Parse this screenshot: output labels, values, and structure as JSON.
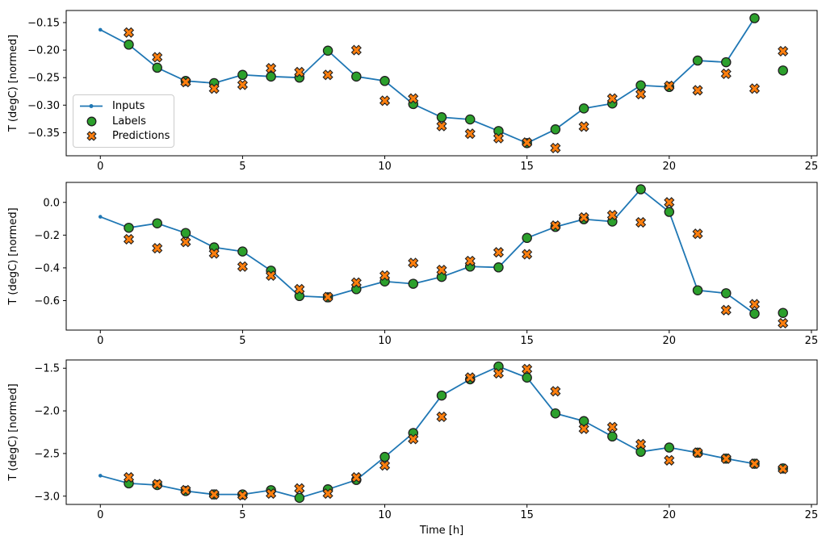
{
  "figure": {
    "background": "#ffffff",
    "xlabel": "Time [h]",
    "ylabel": "T (degC) [normed]"
  },
  "legend": {
    "items": [
      {
        "label": "Inputs",
        "marker": "line-dot-icon",
        "color": "#1f77b4"
      },
      {
        "label": "Labels",
        "marker": "circle-icon",
        "color": "#2ca02c"
      },
      {
        "label": "Predictions",
        "marker": "x-icon",
        "color": "#ff7f0e"
      }
    ]
  },
  "colors": {
    "inputs_blue": "#1f77b4",
    "labels_green": "#2ca02c",
    "predictions_orange": "#ff7f0e",
    "marker_edge": "#1f1f1f",
    "axis": "#000000",
    "legend_border": "#cccccc"
  },
  "chart_data": [
    {
      "type": "line",
      "ylabel": "T (degC) [normed]",
      "xlabel": "",
      "grid": false,
      "xlim": [
        -1.2,
        25.2
      ],
      "ylim": [
        -0.392,
        -0.128
      ],
      "xticks": [
        0,
        5,
        10,
        15,
        20,
        25
      ],
      "xtick_labels": [
        "0",
        "5",
        "10",
        "15",
        "20",
        "25"
      ],
      "yticks": [
        -0.15,
        -0.2,
        -0.25,
        -0.3,
        -0.35
      ],
      "ytick_labels": [
        "−0.15",
        "−0.20",
        "−0.25",
        "−0.30",
        "−0.35"
      ],
      "series": [
        {
          "name": "Inputs",
          "style": "line+dot",
          "x": [
            0,
            1,
            2,
            3,
            4,
            5,
            6,
            7,
            8,
            9,
            10,
            11,
            12,
            13,
            14,
            15,
            16,
            17,
            18,
            19,
            20,
            21,
            22,
            23
          ],
          "y": [
            -0.163,
            -0.19,
            -0.232,
            -0.256,
            -0.26,
            -0.245,
            -0.248,
            -0.25,
            -0.201,
            -0.248,
            -0.256,
            -0.298,
            -0.322,
            -0.326,
            -0.347,
            -0.369,
            -0.344,
            -0.306,
            -0.297,
            -0.264,
            -0.267,
            -0.219,
            -0.222,
            -0.142
          ]
        },
        {
          "name": "Labels",
          "style": "circle",
          "x": [
            1,
            2,
            3,
            4,
            5,
            6,
            7,
            8,
            9,
            10,
            11,
            12,
            13,
            14,
            15,
            16,
            17,
            18,
            19,
            20,
            21,
            22,
            23,
            24
          ],
          "y": [
            -0.19,
            -0.232,
            -0.256,
            -0.26,
            -0.245,
            -0.248,
            -0.25,
            -0.201,
            -0.248,
            -0.256,
            -0.298,
            -0.322,
            -0.326,
            -0.347,
            -0.369,
            -0.344,
            -0.306,
            -0.297,
            -0.264,
            -0.267,
            -0.219,
            -0.222,
            -0.142,
            -0.237
          ]
        },
        {
          "name": "Predictions",
          "style": "x",
          "x": [
            1,
            2,
            3,
            4,
            5,
            6,
            7,
            8,
            9,
            10,
            11,
            12,
            13,
            14,
            15,
            16,
            17,
            18,
            19,
            20,
            21,
            22,
            23,
            24
          ],
          "y": [
            -0.168,
            -0.213,
            -0.258,
            -0.27,
            -0.263,
            -0.233,
            -0.24,
            -0.245,
            -0.2,
            -0.292,
            -0.288,
            -0.338,
            -0.352,
            -0.36,
            -0.368,
            -0.378,
            -0.339,
            -0.288,
            -0.28,
            -0.265,
            -0.273,
            -0.243,
            -0.27,
            -0.202
          ]
        }
      ]
    },
    {
      "type": "line",
      "ylabel": "T (degC) [normed]",
      "xlabel": "",
      "grid": false,
      "xlim": [
        -1.2,
        25.2
      ],
      "ylim": [
        -0.78,
        0.122
      ],
      "xticks": [
        0,
        5,
        10,
        15,
        20,
        25
      ],
      "xtick_labels": [
        "0",
        "5",
        "10",
        "15",
        "20",
        "25"
      ],
      "yticks": [
        0.0,
        -0.2,
        -0.4,
        -0.6
      ],
      "ytick_labels": [
        "0.0",
        "−0.2",
        "−0.4",
        "−0.6"
      ],
      "series": [
        {
          "name": "Inputs",
          "style": "line+dot",
          "x": [
            0,
            1,
            2,
            3,
            4,
            5,
            6,
            7,
            8,
            9,
            10,
            11,
            12,
            13,
            14,
            15,
            16,
            17,
            18,
            19,
            20,
            21,
            22,
            23
          ],
          "y": [
            -0.088,
            -0.155,
            -0.128,
            -0.187,
            -0.275,
            -0.3,
            -0.417,
            -0.572,
            -0.58,
            -0.53,
            -0.483,
            -0.497,
            -0.455,
            -0.392,
            -0.397,
            -0.217,
            -0.15,
            -0.103,
            -0.117,
            0.08,
            -0.058,
            -0.537,
            -0.555,
            -0.68
          ]
        },
        {
          "name": "Labels",
          "style": "circle",
          "x": [
            1,
            2,
            3,
            4,
            5,
            6,
            7,
            8,
            9,
            10,
            11,
            12,
            13,
            14,
            15,
            16,
            17,
            18,
            19,
            20,
            21,
            22,
            23,
            24
          ],
          "y": [
            -0.155,
            -0.128,
            -0.187,
            -0.275,
            -0.3,
            -0.417,
            -0.572,
            -0.58,
            -0.53,
            -0.483,
            -0.497,
            -0.455,
            -0.392,
            -0.397,
            -0.217,
            -0.15,
            -0.103,
            -0.117,
            0.08,
            -0.058,
            -0.537,
            -0.555,
            -0.68,
            -0.675
          ]
        },
        {
          "name": "Predictions",
          "style": "x",
          "x": [
            1,
            2,
            3,
            4,
            5,
            6,
            7,
            8,
            9,
            10,
            11,
            12,
            13,
            14,
            15,
            16,
            17,
            18,
            19,
            20,
            21,
            22,
            23,
            24
          ],
          "y": [
            -0.225,
            -0.28,
            -0.242,
            -0.312,
            -0.392,
            -0.447,
            -0.53,
            -0.578,
            -0.49,
            -0.447,
            -0.37,
            -0.413,
            -0.358,
            -0.305,
            -0.317,
            -0.142,
            -0.092,
            -0.078,
            -0.122,
            0.0,
            -0.192,
            -0.658,
            -0.622,
            -0.738
          ]
        }
      ]
    },
    {
      "type": "line",
      "ylabel": "T (degC) [normed]",
      "xlabel": "Time [h]",
      "grid": false,
      "xlim": [
        -1.2,
        25.2
      ],
      "ylim": [
        -3.097,
        -1.403
      ],
      "xticks": [
        0,
        5,
        10,
        15,
        20,
        25
      ],
      "xtick_labels": [
        "0",
        "5",
        "10",
        "15",
        "20",
        "25"
      ],
      "yticks": [
        -1.5,
        -2.0,
        -2.5,
        -3.0
      ],
      "ytick_labels": [
        "−1.5",
        "−2.0",
        "−2.5",
        "−3.0"
      ],
      "series": [
        {
          "name": "Inputs",
          "style": "line+dot",
          "x": [
            0,
            1,
            2,
            3,
            4,
            5,
            6,
            7,
            8,
            9,
            10,
            11,
            12,
            13,
            14,
            15,
            16,
            17,
            18,
            19,
            20,
            21,
            22,
            23
          ],
          "y": [
            -2.76,
            -2.85,
            -2.87,
            -2.94,
            -2.98,
            -2.98,
            -2.93,
            -3.02,
            -2.92,
            -2.81,
            -2.54,
            -2.26,
            -1.82,
            -1.63,
            -1.48,
            -1.61,
            -2.03,
            -2.12,
            -2.3,
            -2.48,
            -2.43,
            -2.49,
            -2.56,
            -2.62
          ]
        },
        {
          "name": "Labels",
          "style": "circle",
          "x": [
            1,
            2,
            3,
            4,
            5,
            6,
            7,
            8,
            9,
            10,
            11,
            12,
            13,
            14,
            15,
            16,
            17,
            18,
            19,
            20,
            21,
            22,
            23,
            24
          ],
          "y": [
            -2.85,
            -2.87,
            -2.94,
            -2.98,
            -2.98,
            -2.93,
            -3.02,
            -2.92,
            -2.81,
            -2.54,
            -2.26,
            -1.82,
            -1.63,
            -1.48,
            -1.61,
            -2.03,
            -2.12,
            -2.3,
            -2.48,
            -2.43,
            -2.49,
            -2.56,
            -2.62,
            -2.675
          ]
        },
        {
          "name": "Predictions",
          "style": "x",
          "x": [
            1,
            2,
            3,
            4,
            5,
            6,
            7,
            8,
            9,
            10,
            11,
            12,
            13,
            14,
            15,
            16,
            17,
            18,
            19,
            20,
            21,
            22,
            23,
            24
          ],
          "y": [
            -2.78,
            -2.86,
            -2.93,
            -2.98,
            -2.99,
            -2.97,
            -2.91,
            -2.97,
            -2.78,
            -2.64,
            -2.33,
            -2.07,
            -1.61,
            -1.56,
            -1.51,
            -1.77,
            -2.21,
            -2.19,
            -2.39,
            -2.58,
            -2.49,
            -2.56,
            -2.62,
            -2.68
          ]
        }
      ]
    }
  ]
}
